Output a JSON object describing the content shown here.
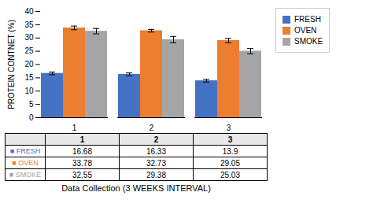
{
  "chart_data": {
    "type": "bar",
    "categories": [
      "1",
      "2",
      "3"
    ],
    "series": [
      {
        "name": "FRESH",
        "color": "#4472C4",
        "values": [
          16.68,
          16.33,
          13.9
        ],
        "errors": [
          0.5,
          0.5,
          0.5
        ]
      },
      {
        "name": "OVEN",
        "color": "#ED7D31",
        "values": [
          33.78,
          32.73,
          29.05
        ],
        "errors": [
          0.7,
          0.5,
          0.8
        ]
      },
      {
        "name": "SMOKE",
        "color": "#A5A5A5",
        "values": [
          32.55,
          29.38,
          25.03
        ],
        "errors": [
          1.0,
          1.2,
          1.0
        ]
      }
    ],
    "ylabel": "PROTEIN CONTNET (%)",
    "xlabel": "Data Collection (3 WEEKS INTERVAL)",
    "ylim": [
      0,
      40
    ],
    "yticks": [
      0,
      5,
      10,
      15,
      20,
      25,
      30,
      35,
      40
    ],
    "legend": "right",
    "table_row_labels": [
      "■ FRESH",
      "■ OVEN",
      "■ SMOKE"
    ]
  }
}
